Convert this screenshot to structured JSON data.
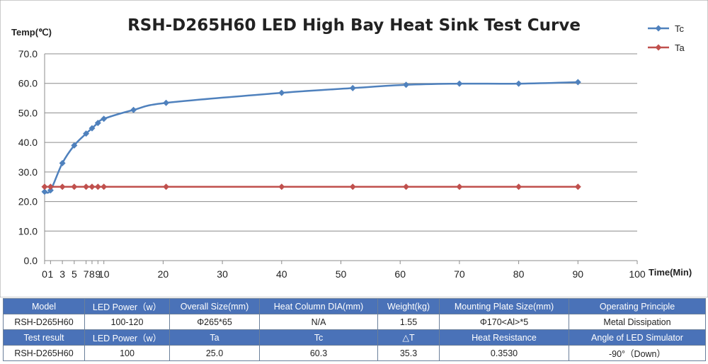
{
  "chart_data": {
    "type": "line",
    "title": "RSH-D265H60 LED High Bay Heat Sink Test Curve",
    "ylabel": "Temp(℃)",
    "xlabel": "Time(Min)",
    "ylim": [
      0,
      70
    ],
    "xlim": [
      0,
      100
    ],
    "yticks": [
      "0.0",
      "10.0",
      "20.0",
      "30.0",
      "40.0",
      "50.0",
      "60.0",
      "70.0"
    ],
    "xticks": [
      "0",
      "1",
      "3",
      "5",
      "7",
      "8",
      "9",
      "10",
      "20",
      "30",
      "40",
      "50",
      "60",
      "70",
      "80",
      "90",
      "100"
    ],
    "grid": "horizontal",
    "legend": "top-right",
    "series": [
      {
        "name": "Tc",
        "color": "#4f81bd",
        "x": [
          0,
          1,
          3,
          5,
          7,
          8,
          9,
          10,
          15,
          20.5,
          40,
          52,
          61,
          70,
          80,
          90
        ],
        "y": [
          23.3,
          23.8,
          33.0,
          39.0,
          43.0,
          44.8,
          46.6,
          48.0,
          51.0,
          53.4,
          56.8,
          58.4,
          59.5,
          59.9,
          59.9,
          60.4
        ]
      },
      {
        "name": "Ta",
        "color": "#c0504d",
        "x": [
          0,
          1,
          3,
          5,
          7,
          8,
          9,
          10,
          20.5,
          40,
          52,
          61,
          70,
          80,
          90
        ],
        "y": [
          25.0,
          25.0,
          25.0,
          25.0,
          25.0,
          25.0,
          25.0,
          25.0,
          25.0,
          25.0,
          25.0,
          25.0,
          25.0,
          25.0,
          25.0
        ]
      }
    ]
  },
  "table": {
    "rows": [
      {
        "header": true,
        "cells": [
          "Model",
          "LED Power（w）",
          "Overall Size(mm)",
          "Heat Column DIA(mm)",
          "Weight(kg)",
          "Mounting Plate Size(mm)",
          "Operating Principle"
        ]
      },
      {
        "header": false,
        "cells": [
          "RSH-D265H60",
          "100-120",
          "Φ265*65",
          "N/A",
          "1.55",
          "Φ170<Al>*5",
          "Metal Dissipation"
        ]
      },
      {
        "header": true,
        "cells": [
          "Test result",
          "LED Power（w）",
          "Ta",
          "Tc",
          "△T",
          "Heat Resistance",
          "Angle of LED Simulator"
        ]
      },
      {
        "header": false,
        "cells": [
          "RSH-D265H60",
          "100",
          "25.0",
          "60.3",
          "35.3",
          "0.3530",
          "-90°（Down）"
        ]
      }
    ]
  }
}
